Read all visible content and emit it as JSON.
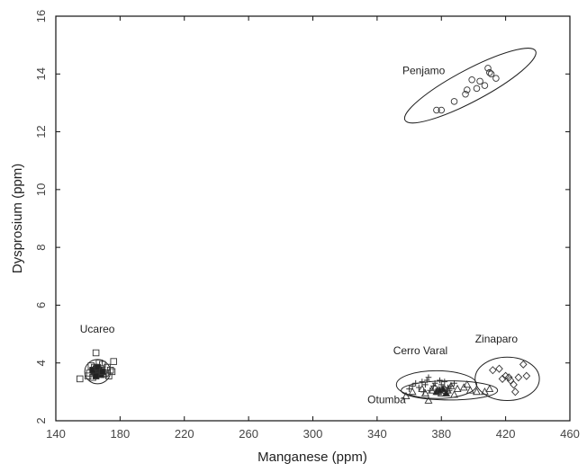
{
  "chart_data": {
    "type": "scatter",
    "title": "",
    "xlabel": "Manganese (ppm)",
    "ylabel": "Dysprosium (ppm)",
    "xlim": [
      140,
      460
    ],
    "ylim": [
      2,
      16
    ],
    "xticks": [
      140,
      180,
      220,
      260,
      300,
      340,
      380,
      420,
      460
    ],
    "yticks": [
      2,
      4,
      6,
      8,
      10,
      12,
      14,
      16
    ],
    "grid": false,
    "legend": "none",
    "groups": [
      {
        "label": "Penjamo",
        "marker": "circle",
        "points": [
          [
            409,
            14.2
          ],
          [
            410,
            14.05
          ],
          [
            411,
            14.0
          ],
          [
            404,
            13.75
          ],
          [
            399,
            13.8
          ],
          [
            414,
            13.85
          ],
          [
            407,
            13.6
          ],
          [
            402,
            13.5
          ],
          [
            395,
            13.3
          ],
          [
            396,
            13.45
          ],
          [
            388,
            13.05
          ],
          [
            377,
            12.75
          ],
          [
            380,
            12.75
          ]
        ],
        "ellipse": {
          "cx": 398,
          "cy": 13.6,
          "rx": 46,
          "ry": 0.55,
          "angle_deg": -28
        }
      },
      {
        "label": "Ucareo",
        "marker": "square",
        "points": [
          [
            155,
            3.45
          ],
          [
            165,
            4.35
          ],
          [
            169,
            3.95
          ],
          [
            172,
            3.85
          ],
          [
            174,
            3.75
          ],
          [
            160,
            3.55
          ],
          [
            163,
            3.5
          ],
          [
            161,
            3.65
          ],
          [
            176,
            4.05
          ],
          [
            175,
            3.7
          ],
          [
            170,
            3.6
          ],
          [
            164,
            3.85
          ],
          [
            162,
            3.9
          ],
          [
            167,
            4.0
          ],
          [
            171,
            3.65
          ],
          [
            173,
            3.55
          ],
          [
            166,
            3.75
          ],
          [
            168,
            3.8
          ]
        ],
        "solid_points": [
          [
            164,
            3.7
          ],
          [
            165,
            3.8
          ],
          [
            166,
            3.65
          ],
          [
            167,
            3.75
          ],
          [
            168,
            3.6
          ],
          [
            165,
            3.55
          ],
          [
            163,
            3.75
          ],
          [
            166,
            3.85
          ],
          [
            169,
            3.7
          ]
        ],
        "ellipse": {
          "cx": 166,
          "cy": 3.7,
          "rx": 8,
          "ry": 0.42,
          "angle_deg": 0
        }
      },
      {
        "label": "Cerro Varal",
        "marker": "plus",
        "points": [
          [
            360,
            3.1
          ],
          [
            362,
            3.2
          ],
          [
            364,
            3.3
          ],
          [
            366,
            3.15
          ],
          [
            368,
            3.35
          ],
          [
            370,
            3.25
          ],
          [
            371,
            3.4
          ],
          [
            373,
            3.05
          ],
          [
            375,
            3.2
          ],
          [
            376,
            3.3
          ],
          [
            378,
            3.1
          ],
          [
            380,
            3.25
          ],
          [
            382,
            3.35
          ],
          [
            384,
            3.15
          ],
          [
            386,
            3.2
          ],
          [
            388,
            3.3
          ],
          [
            372,
            3.5
          ],
          [
            369,
            3.0
          ],
          [
            379,
            3.4
          ],
          [
            385,
            3.05
          ]
        ],
        "ellipse": {
          "cx": 377,
          "cy": 3.25,
          "rx": 25,
          "ry": 0.48,
          "angle_deg": 0
        }
      },
      {
        "label": "Otumba",
        "marker": "triangle",
        "points": [
          [
            358,
            2.85
          ],
          [
            362,
            3.0
          ],
          [
            368,
            3.1
          ],
          [
            370,
            2.95
          ],
          [
            372,
            2.7
          ],
          [
            374,
            3.05
          ],
          [
            376,
            3.15
          ],
          [
            378,
            3.0
          ],
          [
            380,
            2.95
          ],
          [
            382,
            3.1
          ],
          [
            384,
            3.05
          ],
          [
            386,
            3.2
          ],
          [
            390,
            3.1
          ],
          [
            394,
            3.15
          ],
          [
            396,
            3.25
          ],
          [
            398,
            3.05
          ],
          [
            402,
            3.0
          ],
          [
            407,
            3.0
          ],
          [
            410,
            3.1
          ],
          [
            388,
            2.9
          ]
        ],
        "solid_points": [
          [
            377,
            3.0
          ],
          [
            381,
            3.1
          ],
          [
            383,
            2.95
          ],
          [
            379,
            3.05
          ]
        ],
        "ellipse": {
          "cx": 385,
          "cy": 3.05,
          "rx": 30,
          "ry": 0.33,
          "angle_deg": 0
        }
      },
      {
        "label": "Zinaparo",
        "marker": "diamond",
        "points": [
          [
            412,
            3.75
          ],
          [
            416,
            3.8
          ],
          [
            418,
            3.45
          ],
          [
            420,
            3.55
          ],
          [
            422,
            3.5
          ],
          [
            423,
            3.4
          ],
          [
            425,
            3.25
          ],
          [
            426,
            3.0
          ],
          [
            428,
            3.5
          ],
          [
            431,
            3.95
          ],
          [
            433,
            3.55
          ]
        ],
        "ellipse": {
          "cx": 421,
          "cy": 3.45,
          "rx": 20,
          "ry": 0.75,
          "angle_deg": 0
        }
      }
    ]
  }
}
